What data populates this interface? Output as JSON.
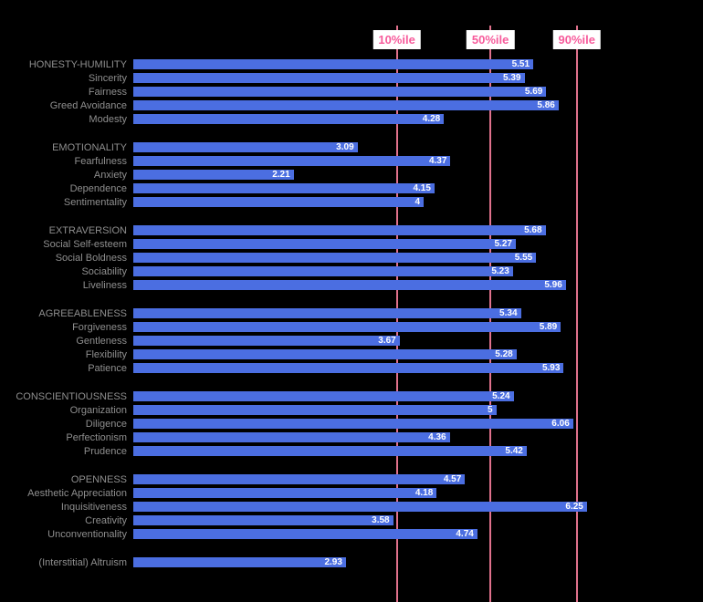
{
  "chart_data": {
    "type": "bar",
    "orientation": "horizontal",
    "title": "",
    "xlabel": "",
    "ylabel": "",
    "xlim": [
      0,
      7
    ],
    "grid": "percentile-lines-only",
    "bar_color": "#4b6ee1",
    "gridline_color": "#e0718c",
    "percentile_label_color": "#f75b9b",
    "label_color": "#8f8f8f",
    "percentiles": [
      {
        "label": "10%ile",
        "value": 3.63
      },
      {
        "label": "50%ile",
        "value": 4.92
      },
      {
        "label": "90%ile",
        "value": 6.11
      }
    ],
    "groups": [
      {
        "rows": [
          {
            "label": "HONESTY-HUMILITY",
            "value": 5.51,
            "display": "5.51"
          },
          {
            "label": "Sincerity",
            "value": 5.39,
            "display": "5.39"
          },
          {
            "label": "Fairness",
            "value": 5.69,
            "display": "5.69"
          },
          {
            "label": "Greed Avoidance",
            "value": 5.86,
            "display": "5.86"
          },
          {
            "label": "Modesty",
            "value": 4.28,
            "display": "4.28"
          }
        ]
      },
      {
        "rows": [
          {
            "label": "EMOTIONALITY",
            "value": 3.09,
            "display": "3.09"
          },
          {
            "label": "Fearfulness",
            "value": 4.37,
            "display": "4.37"
          },
          {
            "label": "Anxiety",
            "value": 2.21,
            "display": "2.21"
          },
          {
            "label": "Dependence",
            "value": 4.15,
            "display": "4.15"
          },
          {
            "label": "Sentimentality",
            "value": 4,
            "display": "4"
          }
        ]
      },
      {
        "rows": [
          {
            "label": "EXTRAVERSION",
            "value": 5.68,
            "display": "5.68"
          },
          {
            "label": "Social Self-esteem",
            "value": 5.27,
            "display": "5.27"
          },
          {
            "label": "Social Boldness",
            "value": 5.55,
            "display": "5.55"
          },
          {
            "label": "Sociability",
            "value": 5.23,
            "display": "5.23"
          },
          {
            "label": "Liveliness",
            "value": 5.96,
            "display": "5.96"
          }
        ]
      },
      {
        "rows": [
          {
            "label": "AGREEABLENESS",
            "value": 5.34,
            "display": "5.34"
          },
          {
            "label": "Forgiveness",
            "value": 5.89,
            "display": "5.89"
          },
          {
            "label": "Gentleness",
            "value": 3.67,
            "display": "3.67"
          },
          {
            "label": "Flexibility",
            "value": 5.28,
            "display": "5.28"
          },
          {
            "label": "Patience",
            "value": 5.93,
            "display": "5.93"
          }
        ]
      },
      {
        "rows": [
          {
            "label": "CONSCIENTIOUSNESS",
            "value": 5.24,
            "display": "5.24"
          },
          {
            "label": "Organization",
            "value": 5,
            "display": "5"
          },
          {
            "label": "Diligence",
            "value": 6.06,
            "display": "6.06"
          },
          {
            "label": "Perfectionism",
            "value": 4.36,
            "display": "4.36"
          },
          {
            "label": "Prudence",
            "value": 5.42,
            "display": "5.42"
          }
        ]
      },
      {
        "rows": [
          {
            "label": "OPENNESS",
            "value": 4.57,
            "display": "4.57"
          },
          {
            "label": "Aesthetic Appreciation",
            "value": 4.18,
            "display": "4.18"
          },
          {
            "label": "Inquisitiveness",
            "value": 6.25,
            "display": "6.25"
          },
          {
            "label": "Creativity",
            "value": 3.58,
            "display": "3.58"
          },
          {
            "label": "Unconventionality",
            "value": 4.74,
            "display": "4.74"
          }
        ]
      },
      {
        "rows": [
          {
            "label": "(Interstitial) Altruism",
            "value": 2.93,
            "display": "2.93"
          }
        ]
      }
    ]
  }
}
